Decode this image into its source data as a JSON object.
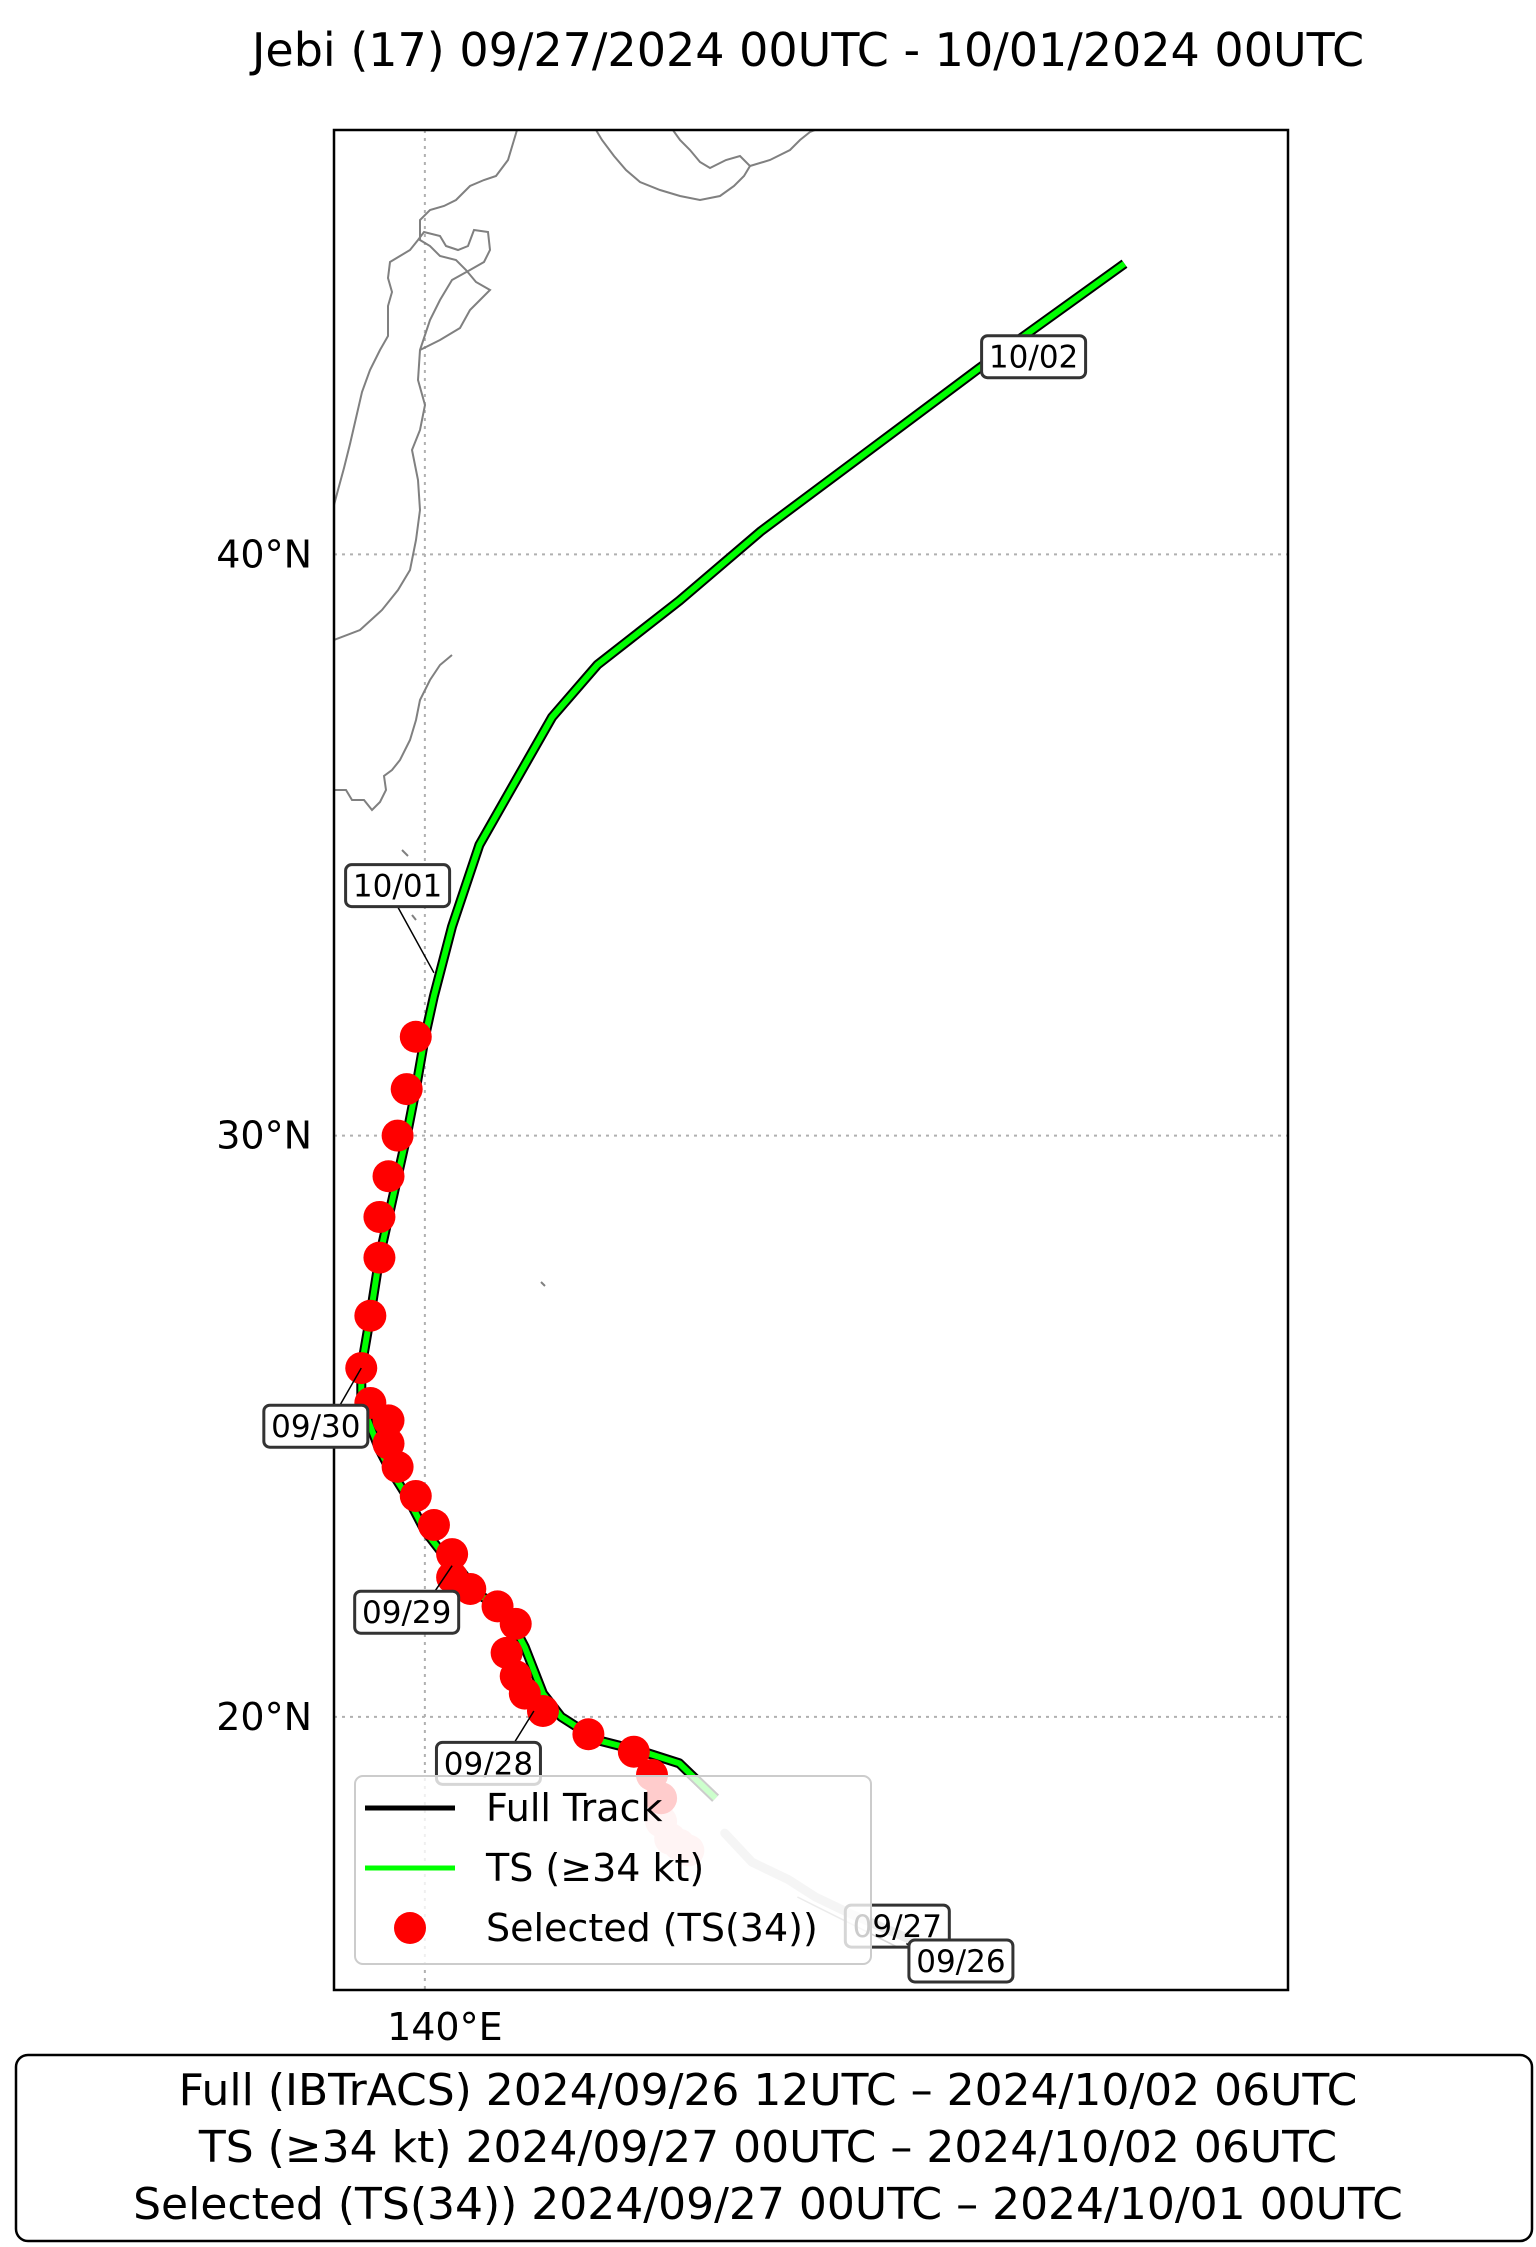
{
  "title": "Jebi (17)   09/27/2024 00UTC - 10/01/2024 00UTC",
  "axes": {
    "lat_ticks": [
      {
        "label": "40°N",
        "lat": 40
      },
      {
        "label": "30°N",
        "lat": 30
      },
      {
        "label": "20°N",
        "lat": 20
      }
    ],
    "lon_ticks": [
      {
        "label": "140°E",
        "lon": 140
      }
    ],
    "lon_range": [
      139.0,
      149.5
    ],
    "lat_range": [
      15.3,
      47.3
    ],
    "grid": true
  },
  "colors": {
    "full_track": "#000000",
    "ts_track": "#00ff00",
    "selected": "#ff0000",
    "faded_selected": "#ffc8c8",
    "faded_track": "#cccccc",
    "coastline": "#808080"
  },
  "chart_data": {
    "type": "scatter",
    "tracks": {
      "faded": [
        {
          "lon": 143.3,
          "lat": 18.0
        },
        {
          "lon": 143.6,
          "lat": 17.5
        },
        {
          "lon": 144.0,
          "lat": 17.2
        },
        {
          "lon": 144.3,
          "lat": 16.9
        },
        {
          "lon": 144.7,
          "lat": 16.6
        },
        {
          "lon": 145.3,
          "lat": 16.2
        },
        {
          "lon": 145.7,
          "lat": 15.9
        }
      ],
      "ts": [
        {
          "lon": 143.2,
          "lat": 18.6
        },
        {
          "lon": 143.0,
          "lat": 18.9
        },
        {
          "lon": 142.8,
          "lat": 19.2
        },
        {
          "lon": 142.4,
          "lat": 19.4
        },
        {
          "lon": 141.9,
          "lat": 19.6
        },
        {
          "lon": 141.5,
          "lat": 20.0
        },
        {
          "lon": 141.3,
          "lat": 20.4
        },
        {
          "lon": 141.2,
          "lat": 20.8
        },
        {
          "lon": 141.1,
          "lat": 21.2
        },
        {
          "lon": 141.0,
          "lat": 21.5
        },
        {
          "lon": 140.9,
          "lat": 21.8
        },
        {
          "lon": 140.6,
          "lat": 22.1
        },
        {
          "lon": 140.4,
          "lat": 22.5
        },
        {
          "lon": 140.2,
          "lat": 22.8
        },
        {
          "lon": 140.0,
          "lat": 23.2
        },
        {
          "lon": 139.8,
          "lat": 23.8
        },
        {
          "lon": 139.6,
          "lat": 24.3
        },
        {
          "lon": 139.5,
          "lat": 24.6
        },
        {
          "lon": 139.4,
          "lat": 25.0
        },
        {
          "lon": 139.3,
          "lat": 25.4
        },
        {
          "lon": 139.3,
          "lat": 26.0
        },
        {
          "lon": 139.4,
          "lat": 26.9
        },
        {
          "lon": 139.5,
          "lat": 27.9
        },
        {
          "lon": 139.6,
          "lat": 28.6
        },
        {
          "lon": 139.7,
          "lat": 29.3
        },
        {
          "lon": 139.8,
          "lat": 30.0
        },
        {
          "lon": 139.9,
          "lat": 30.8
        },
        {
          "lon": 140.0,
          "lat": 31.7
        },
        {
          "lon": 140.1,
          "lat": 32.4
        },
        {
          "lon": 140.3,
          "lat": 33.6
        },
        {
          "lon": 140.6,
          "lat": 35.0
        },
        {
          "lon": 141.0,
          "lat": 36.1
        },
        {
          "lon": 141.4,
          "lat": 37.2
        },
        {
          "lon": 141.9,
          "lat": 38.1
        },
        {
          "lon": 142.8,
          "lat": 39.2
        },
        {
          "lon": 143.7,
          "lat": 40.4
        },
        {
          "lon": 144.9,
          "lat": 41.8
        },
        {
          "lon": 146.1,
          "lat": 43.2
        },
        {
          "lon": 147.7,
          "lat": 45.0
        }
      ]
    },
    "selected_points": [
      {
        "lon": 139.9,
        "lat": 31.7
      },
      {
        "lon": 139.8,
        "lat": 30.8
      },
      {
        "lon": 139.7,
        "lat": 30.0
      },
      {
        "lon": 139.6,
        "lat": 29.3
      },
      {
        "lon": 139.5,
        "lat": 28.6
      },
      {
        "lon": 139.5,
        "lat": 27.9
      },
      {
        "lon": 139.4,
        "lat": 26.9
      },
      {
        "lon": 139.3,
        "lat": 26.0
      },
      {
        "lon": 139.4,
        "lat": 25.4
      },
      {
        "lon": 139.6,
        "lat": 25.1
      },
      {
        "lon": 139.6,
        "lat": 24.7
      },
      {
        "lon": 139.7,
        "lat": 24.3
      },
      {
        "lon": 139.9,
        "lat": 23.8
      },
      {
        "lon": 140.1,
        "lat": 23.3
      },
      {
        "lon": 140.3,
        "lat": 22.8
      },
      {
        "lon": 140.3,
        "lat": 22.4
      },
      {
        "lon": 140.5,
        "lat": 22.2
      },
      {
        "lon": 140.8,
        "lat": 21.9
      },
      {
        "lon": 141.0,
        "lat": 21.6
      },
      {
        "lon": 140.9,
        "lat": 21.1
      },
      {
        "lon": 141.0,
        "lat": 20.7
      },
      {
        "lon": 141.1,
        "lat": 20.4
      },
      {
        "lon": 141.3,
        "lat": 20.1
      },
      {
        "lon": 141.8,
        "lat": 19.7
      },
      {
        "lon": 142.3,
        "lat": 19.4
      },
      {
        "lon": 142.5,
        "lat": 19.0
      },
      {
        "lon": 142.6,
        "lat": 18.6
      }
    ],
    "faded_selected_points": [
      {
        "lon": 142.6,
        "lat": 18.2
      },
      {
        "lon": 142.7,
        "lat": 17.9
      },
      {
        "lon": 142.8,
        "lat": 17.8
      },
      {
        "lon": 142.9,
        "lat": 17.7
      }
    ],
    "date_labels": [
      {
        "text": "10/02",
        "lon": 146.7,
        "lat": 43.4,
        "anchor_lon": 146.2,
        "anchor_lat": 43.1,
        "faded": false
      },
      {
        "text": "10/01",
        "lon": 139.7,
        "lat": 34.3,
        "anchor_lon": 140.1,
        "anchor_lat": 32.8,
        "faded": false
      },
      {
        "text": "09/30",
        "lon": 138.8,
        "lat": 25.0,
        "anchor_lon": 139.3,
        "anchor_lat": 26.0,
        "faded": false
      },
      {
        "text": "09/29",
        "lon": 139.8,
        "lat": 21.8,
        "anchor_lon": 140.3,
        "anchor_lat": 22.6,
        "faded": false
      },
      {
        "text": "09/28",
        "lon": 140.7,
        "lat": 19.2,
        "anchor_lon": 141.2,
        "anchor_lat": 20.1,
        "faded": false
      },
      {
        "text": "09/27",
        "lon": 145.2,
        "lat": 16.4,
        "anchor_lon": 144.1,
        "anchor_lat": 16.9,
        "faded": true
      },
      {
        "text": "09/26",
        "lon": 145.9,
        "lat": 15.8,
        "anchor_lon": 145.3,
        "anchor_lat": 16.1,
        "faded": false
      }
    ]
  },
  "legend": {
    "items": [
      {
        "label": "Full Track",
        "kind": "line",
        "color": "#000000"
      },
      {
        "label": "TS (≥34 kt)",
        "kind": "line",
        "color": "#00ff00"
      },
      {
        "label": "Selected (TS(34))",
        "kind": "dot",
        "color": "#ff0000"
      }
    ]
  },
  "summary": {
    "lines": [
      "Full (IBTrACS)   2024/09/26 12UTC – 2024/10/02 06UTC",
      "TS (≥34 kt)   2024/09/27 00UTC – 2024/10/02 06UTC",
      "Selected (TS(34))   2024/09/27 00UTC – 2024/10/01 00UTC"
    ]
  }
}
